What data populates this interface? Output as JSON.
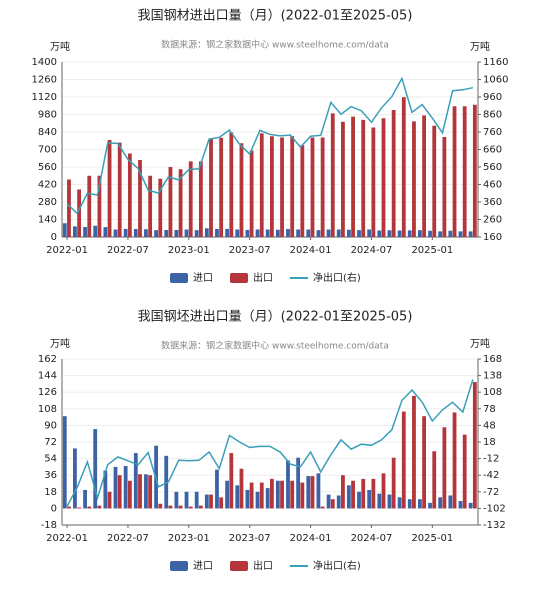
{
  "chart_data": [
    {
      "type": "bar",
      "title": "我国钢材进出口量（月）(2022-01至2025-05)",
      "subtitle": "数据来源：钢之家数据中心 www.steelhome.com/data",
      "y_label": "万吨",
      "y2_label": "万吨",
      "categories": [
        "2022-01",
        null,
        null,
        null,
        null,
        null,
        "2022-07",
        null,
        null,
        null,
        null,
        null,
        "2023-01",
        null,
        null,
        null,
        null,
        null,
        "2023-07",
        null,
        null,
        null,
        null,
        null,
        "2024-01",
        null,
        null,
        null,
        null,
        null,
        "2024-07",
        null,
        null,
        null,
        null,
        null,
        "2025-01",
        null,
        null,
        null,
        null
      ],
      "series": [
        {
          "name": "进口",
          "color": "#3c63a6",
          "values": [
            110,
            85,
            80,
            90,
            79,
            60,
            65,
            64,
            62,
            55,
            56,
            56,
            60,
            55,
            70,
            64,
            65,
            60,
            57,
            60,
            60,
            58,
            64,
            60,
            60,
            55,
            60,
            60,
            58,
            55,
            60,
            52,
            54,
            52,
            53,
            55,
            50,
            45,
            50,
            45,
            45
          ]
        },
        {
          "name": "出口",
          "color": "#b3363a",
          "values": [
            460,
            380,
            490,
            490,
            776,
            755,
            668,
            616,
            490,
            466,
            560,
            542,
            605,
            605,
            789,
            794,
            836,
            750,
            691,
            829,
            806,
            796,
            807,
            734,
            796,
            796,
            989,
            922,
            963,
            937,
            876,
            950,
            1016,
            1118,
            925,
            972,
            890,
            800,
            1046,
            1046,
            1058
          ]
        },
        {
          "name": "净出口(右)",
          "color": "#3a9fb8",
          "type": "line",
          "axis": "y2",
          "values": [
            350,
            295,
            410,
            400,
            697,
            695,
            603,
            552,
            428,
            411,
            504,
            486,
            545,
            550,
            719,
            730,
            771,
            690,
            634,
            769,
            746,
            738,
            743,
            674,
            736,
            741,
            929,
            862,
            905,
            882,
            816,
            898,
            962,
            1066,
            872,
            917,
            840,
            755,
            996,
            1001,
            1013
          ]
        }
      ],
      "ylim": [
        0,
        1400
      ],
      "yticks": [
        0,
        140,
        280,
        420,
        560,
        700,
        840,
        980,
        1120,
        1260,
        1400
      ],
      "y2lim": [
        160,
        1160
      ],
      "y2ticks": [
        160,
        260,
        360,
        460,
        560,
        660,
        760,
        860,
        960,
        1060,
        1160
      ],
      "grid": true
    },
    {
      "type": "bar",
      "title": "我国钢坯进出口量（月）(2022-01至2025-05)",
      "subtitle": "数据来源：钢之家数据中心 www.steelhome.com/data",
      "y_label": "万吨",
      "y2_label": "万吨",
      "categories": [
        "2022-01",
        null,
        null,
        null,
        null,
        null,
        "2022-07",
        null,
        null,
        null,
        null,
        null,
        "2023-01",
        null,
        null,
        null,
        null,
        null,
        "2023-07",
        null,
        null,
        null,
        null,
        null,
        "2024-01",
        null,
        null,
        null,
        null,
        null,
        "2024-07",
        null,
        null,
        null,
        null,
        null,
        "2025-01",
        null,
        null,
        null,
        null
      ],
      "series": [
        {
          "name": "进口",
          "color": "#3c63a6",
          "values": [
            100,
            65,
            20,
            86,
            41,
            45,
            46,
            60,
            37,
            68,
            57,
            18,
            18,
            18,
            15,
            42,
            30,
            25,
            20,
            18,
            22,
            30,
            52,
            55,
            35,
            38,
            15,
            14,
            25,
            18,
            20,
            16,
            15,
            12,
            10,
            10,
            6,
            12,
            14,
            8,
            6
          ]
        },
        {
          "name": "出口",
          "color": "#b3363a",
          "values": [
            2,
            1,
            2,
            3,
            18,
            36,
            30,
            37,
            36,
            5,
            3,
            3,
            2,
            3,
            15,
            12,
            60,
            43,
            28,
            28,
            32,
            30,
            30,
            28,
            35,
            2,
            10,
            36,
            30,
            32,
            32,
            38,
            55,
            105,
            122,
            100,
            62,
            88,
            104,
            80,
            137
          ]
        },
        {
          "name": "净出口(右)",
          "color": "#3a9fb8",
          "type": "line",
          "axis": "y2",
          "values": [
            -98,
            -64,
            -18,
            -83,
            -23,
            -9,
            -16,
            -23,
            -1,
            -63,
            -54,
            -15,
            -16,
            -15,
            0,
            -30,
            30,
            18,
            8,
            10,
            10,
            0,
            -22,
            -27,
            0,
            -36,
            -5,
            22,
            5,
            14,
            12,
            22,
            40,
            93,
            112,
            90,
            56,
            76,
            90,
            72,
            131
          ]
        }
      ],
      "ylim": [
        -18,
        162
      ],
      "yticks": [
        -18,
        0,
        18,
        36,
        54,
        72,
        90,
        108,
        126,
        144,
        162
      ],
      "y2lim": [
        -132,
        168
      ],
      "y2ticks": [
        -132,
        -102,
        -72,
        -42,
        -12,
        18,
        48,
        78,
        108,
        138,
        168
      ],
      "grid": true
    }
  ]
}
